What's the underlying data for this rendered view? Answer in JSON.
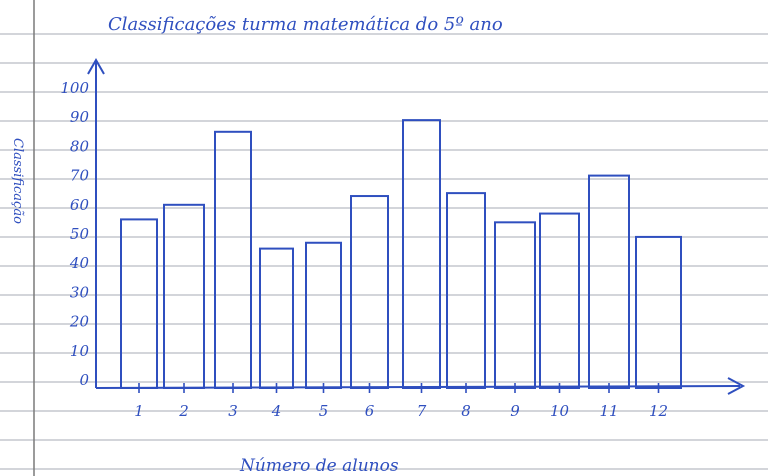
{
  "colors": {
    "ink": "#2f4fbf",
    "rule": "#b9bcc4",
    "paper": "#ffffff",
    "margin_line": "#7a7a7a"
  },
  "chart_data": {
    "type": "bar",
    "title": "Classificações turma matemática do 5º ano",
    "xlabel": "Número de alunos",
    "ylabel": "Classificação",
    "categories": [
      "1",
      "2",
      "3",
      "4",
      "5",
      "6",
      "7",
      "8",
      "9",
      "10",
      "11",
      "12"
    ],
    "values": [
      55,
      60,
      85,
      45,
      47,
      63,
      89,
      64,
      54,
      57,
      70,
      49
    ],
    "yticks": [
      "0",
      "10",
      "20",
      "30",
      "40",
      "50",
      "60",
      "70",
      "80",
      "90",
      "100"
    ],
    "ylim": [
      0,
      100
    ],
    "grid": false,
    "legend": "none"
  }
}
